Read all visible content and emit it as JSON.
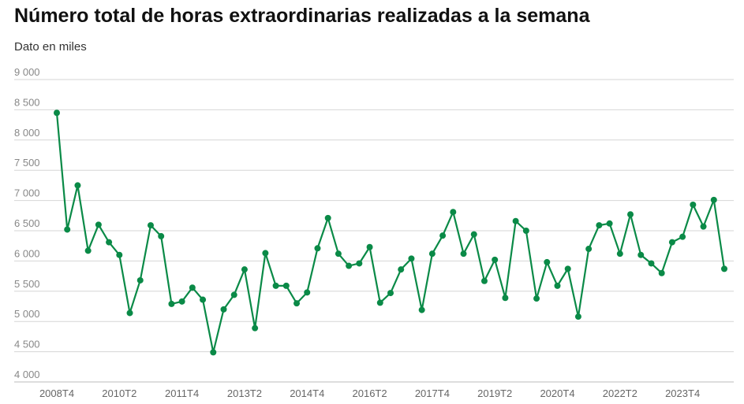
{
  "chart_data": {
    "type": "line",
    "title": "Número total de horas extraordinarias realizadas a la semana",
    "subtitle": "Dato en miles",
    "xlabel": "",
    "ylabel": "",
    "ylim": [
      4000,
      9000
    ],
    "yticks": [
      4000,
      4500,
      5000,
      5500,
      6000,
      6500,
      7000,
      7500,
      8000,
      8500,
      9000
    ],
    "ytick_labels": [
      "4 000",
      "4 500",
      "5 000",
      "5 500",
      "6 000",
      "6 500",
      "7 000",
      "7 500",
      "8 000",
      "8 500",
      "9 000"
    ],
    "xtick_labels": [
      "2008T4",
      "2010T2",
      "2011T4",
      "2013T2",
      "2014T4",
      "2016T2",
      "2017T4",
      "2019T2",
      "2020T4",
      "2022T2",
      "2023T4"
    ],
    "grid": true,
    "color": "#0a8a47",
    "categories": [
      "2008T4",
      "2009T1",
      "2009T2",
      "2009T3",
      "2009T4",
      "2010T1",
      "2010T2",
      "2010T3",
      "2010T4",
      "2011T1",
      "2011T2",
      "2011T3",
      "2011T4",
      "2012T1",
      "2012T2",
      "2012T3",
      "2012T4",
      "2013T1",
      "2013T2",
      "2013T3",
      "2013T4",
      "2014T1",
      "2014T2",
      "2014T3",
      "2014T4",
      "2015T1",
      "2015T2",
      "2015T3",
      "2015T4",
      "2016T1",
      "2016T2",
      "2016T3",
      "2016T4",
      "2017T1",
      "2017T2",
      "2017T3",
      "2017T4",
      "2018T1",
      "2018T2",
      "2018T3",
      "2018T4",
      "2019T1",
      "2019T2",
      "2019T3",
      "2019T4",
      "2020T1",
      "2020T2",
      "2020T3",
      "2020T4",
      "2021T1",
      "2021T2",
      "2021T3",
      "2021T4",
      "2022T1",
      "2022T2",
      "2022T3",
      "2022T4",
      "2023T1",
      "2023T2",
      "2023T3",
      "2023T4",
      "2024T1",
      "2024T2",
      "2024T3",
      "2024T4"
    ],
    "values": [
      8450,
      6520,
      7250,
      6170,
      6600,
      6310,
      6100,
      5140,
      5680,
      6590,
      6410,
      5290,
      5330,
      5560,
      5360,
      4490,
      5200,
      5440,
      5860,
      4890,
      6130,
      5590,
      5590,
      5300,
      5480,
      6210,
      6710,
      6120,
      5920,
      5960,
      6230,
      5310,
      5470,
      5860,
      6040,
      5190,
      6120,
      6420,
      6810,
      6120,
      6440,
      5670,
      6020,
      5390,
      6660,
      6500,
      5380,
      5980,
      5590,
      5870,
      5080,
      6200,
      6590,
      6620,
      6120,
      6770,
      6100,
      5960,
      5800,
      6310,
      6400,
      6930,
      6570,
      7010,
      5870
    ]
  }
}
